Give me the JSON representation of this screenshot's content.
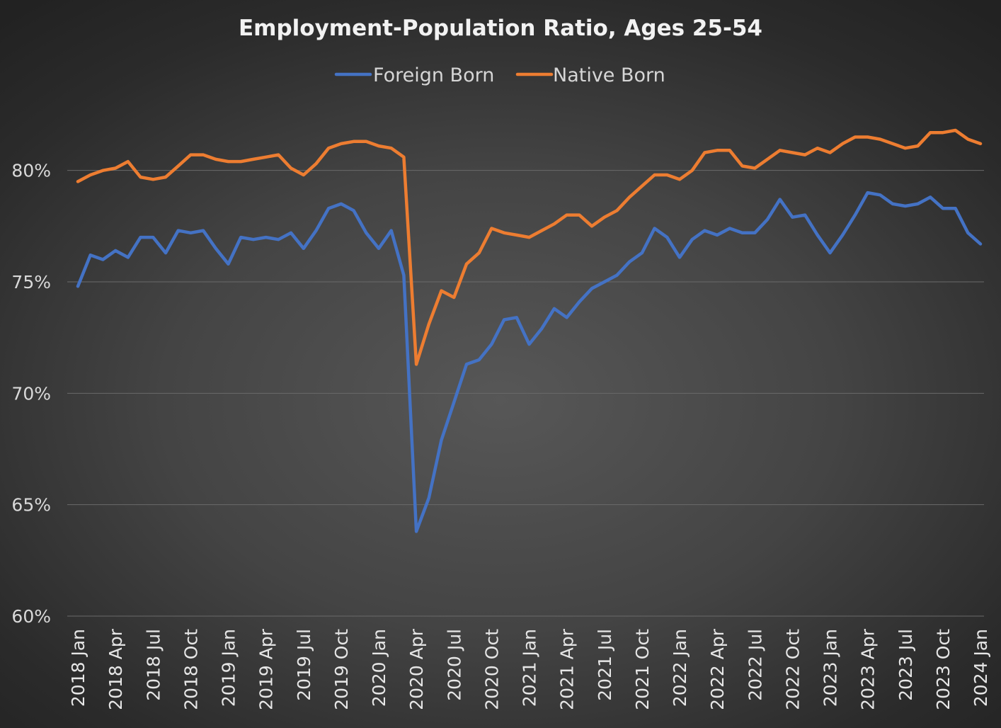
{
  "chart_data": {
    "type": "line",
    "title": "Employment-Population Ratio, Ages 25-54",
    "xlabel": "",
    "ylabel": "",
    "ylim": [
      60,
      82.5
    ],
    "y_ticks": [
      60,
      65,
      70,
      75,
      80
    ],
    "y_tick_labels": [
      "60%",
      "65%",
      "70%",
      "75%",
      "80%"
    ],
    "grid": true,
    "legend_position": "top-center",
    "x_tick_labels": [
      "2018 Jan",
      "2018 Apr",
      "2018 Jul",
      "2018 Oct",
      "2019 Jan",
      "2019 Apr",
      "2019 Jul",
      "2019 Oct",
      "2020 Jan",
      "2020 Apr",
      "2020 Jul",
      "2020 Oct",
      "2021 Jan",
      "2021 Apr",
      "2021 Jul",
      "2021 Oct",
      "2022 Jan",
      "2022 Apr",
      "2022 Jul",
      "2022 Oct",
      "2023 Jan",
      "2023 Apr",
      "2023 Jul",
      "2023 Oct",
      "2024 Jan"
    ],
    "x_tick_every_months": 3,
    "n_points": 73,
    "series": [
      {
        "name": "Foreign Born",
        "color": "#4472c4",
        "values": [
          74.8,
          76.2,
          76.0,
          76.4,
          76.1,
          77.0,
          77.0,
          76.3,
          77.3,
          77.2,
          77.3,
          76.5,
          75.8,
          77.0,
          76.9,
          77.0,
          76.9,
          77.2,
          76.5,
          77.3,
          78.3,
          78.5,
          78.2,
          77.2,
          76.5,
          77.3,
          75.3,
          63.8,
          65.3,
          67.9,
          69.6,
          71.3,
          71.5,
          72.2,
          73.3,
          73.4,
          72.2,
          72.9,
          73.8,
          73.4,
          74.1,
          74.7,
          75.0,
          75.3,
          75.9,
          76.3,
          77.4,
          77.0,
          76.1,
          76.9,
          77.3,
          77.1,
          77.4,
          77.2,
          77.2,
          77.8,
          78.7,
          77.9,
          78.0,
          77.1,
          76.3,
          77.1,
          78.0,
          79.0,
          78.9,
          78.5,
          78.4,
          78.5,
          78.8,
          78.3,
          78.3,
          77.2,
          76.7
        ]
      },
      {
        "name": "Native Born",
        "color": "#ed7d31",
        "values": [
          79.5,
          79.8,
          80.0,
          80.1,
          80.4,
          79.7,
          79.6,
          79.7,
          80.2,
          80.7,
          80.7,
          80.5,
          80.4,
          80.4,
          80.5,
          80.6,
          80.7,
          80.1,
          79.8,
          80.3,
          81.0,
          81.2,
          81.3,
          81.3,
          81.1,
          81.0,
          80.6,
          71.3,
          73.1,
          74.6,
          74.3,
          75.8,
          76.3,
          77.4,
          77.2,
          77.1,
          77.0,
          77.3,
          77.6,
          78.0,
          78.0,
          77.5,
          77.9,
          78.2,
          78.8,
          79.3,
          79.8,
          79.8,
          79.6,
          80.0,
          80.8,
          80.9,
          80.9,
          80.2,
          80.1,
          80.5,
          80.9,
          80.8,
          80.7,
          81.0,
          80.8,
          81.2,
          81.5,
          81.5,
          81.4,
          81.2,
          81.0,
          81.1,
          81.7,
          81.7,
          81.8,
          81.4,
          81.2
        ]
      }
    ]
  }
}
